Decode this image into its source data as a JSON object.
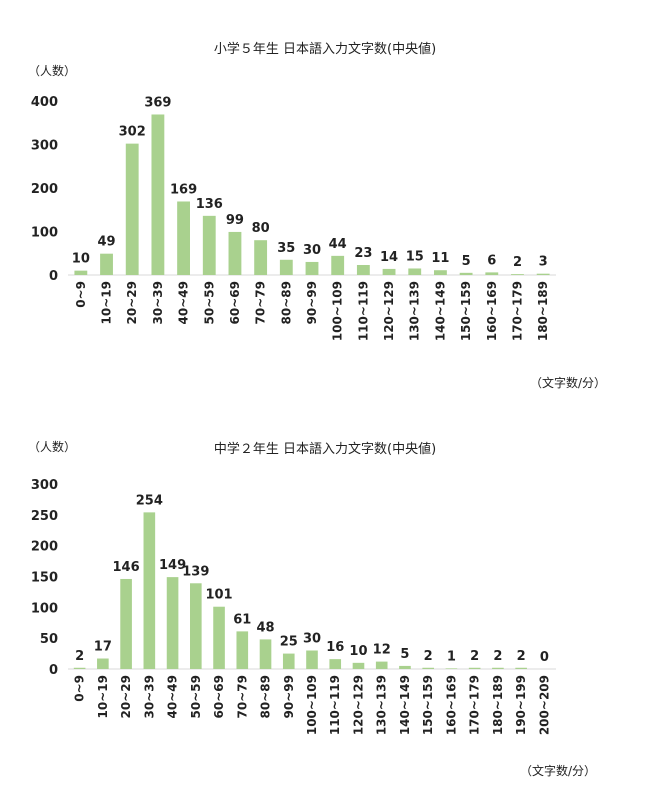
{
  "chart_data": [
    {
      "type": "bar",
      "title": "小学５年生 日本語入力文字数(中央値)",
      "ylabel": "（人数）",
      "xlabel": "（文字数/分）",
      "ylim": [
        0,
        400
      ],
      "yticks": [
        "0",
        "100",
        "200",
        "300",
        "400"
      ],
      "categories": [
        "0~9",
        "10~19",
        "20~29",
        "30~39",
        "40~49",
        "50~59",
        "60~69",
        "70~79",
        "80~89",
        "90~99",
        "100~109",
        "110~119",
        "120~129",
        "130~139",
        "140~149",
        "150~159",
        "160~169",
        "170~179",
        "180~189"
      ],
      "values": [
        10,
        49,
        302,
        369,
        169,
        136,
        99,
        80,
        35,
        30,
        44,
        23,
        14,
        15,
        11,
        5,
        6,
        2,
        3
      ],
      "labels": [
        "10",
        "49",
        "302",
        "369",
        "169",
        "136",
        "99",
        "80",
        "35",
        "30",
        "44",
        "23",
        "14",
        "15",
        "11",
        "5",
        "6",
        "2",
        "3"
      ],
      "bar_color": "#a9d18e"
    },
    {
      "type": "bar",
      "title": "中学２年生 日本語入力文字数(中央値)",
      "ylabel": "（人数）",
      "xlabel": "（文字数/分）",
      "ylim": [
        0,
        300
      ],
      "yticks": [
        "0",
        "50",
        "100",
        "150",
        "200",
        "250",
        "300"
      ],
      "categories": [
        "0~9",
        "10~19",
        "20~29",
        "30~39",
        "40~49",
        "50~59",
        "60~69",
        "70~79",
        "80~89",
        "90~99",
        "100~109",
        "110~119",
        "120~129",
        "130~139",
        "140~149",
        "150~159",
        "160~169",
        "170~179",
        "180~189",
        "190~199",
        "200~209"
      ],
      "values": [
        2,
        17,
        146,
        254,
        149,
        139,
        101,
        61,
        48,
        25,
        30,
        16,
        10,
        12,
        5,
        2,
        1,
        2,
        2,
        2,
        0
      ],
      "labels": [
        "2",
        "17",
        "146",
        "254",
        "149",
        "139",
        "101",
        "61",
        "48",
        "25",
        "30",
        "16",
        "10",
        "12",
        "5",
        "2",
        "1",
        "2",
        "2",
        "2",
        "0"
      ],
      "bar_color": "#a9d18e"
    }
  ]
}
